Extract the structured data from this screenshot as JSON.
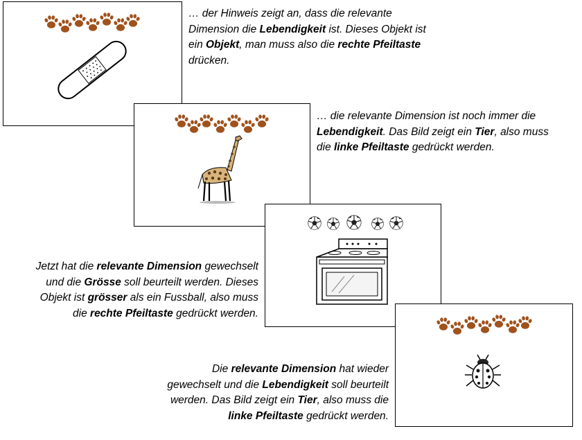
{
  "colors": {
    "paw": "#a0521d",
    "border": "#000000",
    "text": "#000000"
  },
  "cards": [
    {
      "id": "card-1",
      "cue": "paw-prints",
      "picture": "band-aid-icon"
    },
    {
      "id": "card-2",
      "cue": "paw-prints",
      "picture": "giraffe-icon"
    },
    {
      "id": "card-3",
      "cue": "soccer-balls",
      "picture": "stove-icon"
    },
    {
      "id": "card-4",
      "cue": "paw-prints",
      "picture": "ladybug-icon"
    }
  ],
  "captions": {
    "c1": {
      "l1a": "… der Hinweis zeigt an, dass die relevante",
      "l2a": "Dimension die ",
      "l2b": "Lebendigkeit",
      "l2c": " ist.  Dieses Objekt ist",
      "l3a": "ein ",
      "l3b": "Objekt",
      "l3c": ", man muss also die ",
      "l3d": "rechte Pfeiltaste",
      "l4a": "drücken."
    },
    "c2": {
      "l1a": "… die relevante Dimension ist noch immer die",
      "l2a": "Lebendigkeit",
      "l2b": ". Das Bild zeigt ein ",
      "l2c": "Tier",
      "l2d": ", also muss",
      "l3a": "die ",
      "l3b": "linke Pfeiltaste",
      "l3c": " gedrückt werden."
    },
    "c3": {
      "l1a": "Jetzt hat die ",
      "l1b": "relevante Dimension",
      "l1c": " gewechselt",
      "l2a": "und die ",
      "l2b": "Grösse",
      "l2c": " soll beurteilt werden. Dieses",
      "l3a": "Objekt ist ",
      "l3b": "grösser",
      "l3c": " als ein Fussball, also muss",
      "l4a": "die ",
      "l4b": "rechte Pfeiltaste",
      "l4c": " gedrückt werden."
    },
    "c4": {
      "l1a": "Die ",
      "l1b": "relevante Dimension",
      "l1c": " hat wieder",
      "l2a": "gewechselt und die ",
      "l2b": "Lebendigkeit",
      "l2c": " soll beurteilt",
      "l3a": "werden. Das Bild zeigt ein ",
      "l3b": "Tier",
      "l3c": ", also muss die",
      "l4a": "linke Pfeiltaste",
      "l4b": " gedrückt werden."
    }
  }
}
